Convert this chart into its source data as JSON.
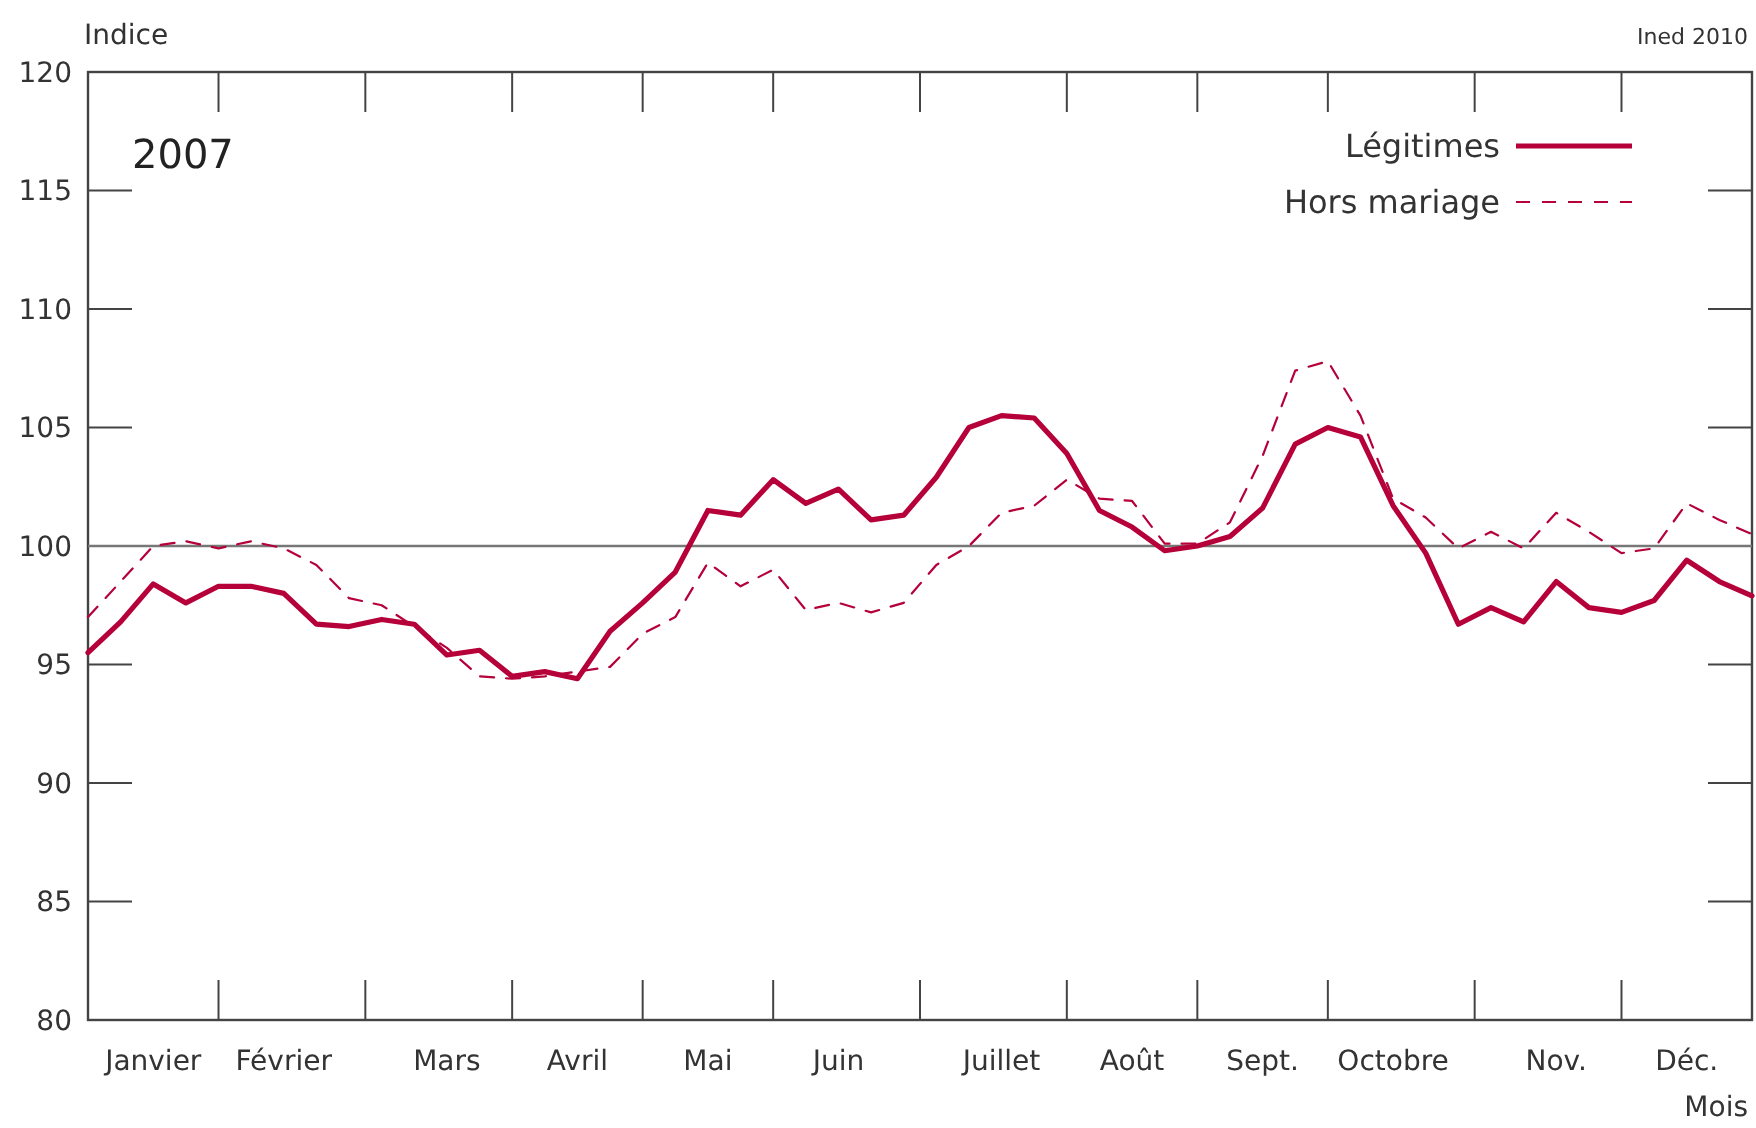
{
  "chart_data": {
    "type": "line",
    "title": "2007",
    "xlabel": "Mois",
    "ylabel": "Indice",
    "annotations": [
      "Ined 2010"
    ],
    "categories": [
      null,
      null,
      "Janvier",
      null,
      null,
      null,
      "Février",
      null,
      null,
      null,
      null,
      "Mars",
      null,
      null,
      null,
      "Avril",
      null,
      null,
      null,
      "Mai",
      null,
      null,
      null,
      "Juin",
      null,
      null,
      null,
      null,
      "Juillet",
      null,
      null,
      null,
      "Août",
      null,
      null,
      null,
      "Sept.",
      null,
      null,
      null,
      "Octobre",
      null,
      null,
      null,
      null,
      "Nov.",
      null,
      null,
      null,
      "Déc.",
      null,
      null
    ],
    "series": [
      {
        "name": "Légitimes",
        "color": "#b5003a",
        "line_style": "solid",
        "values": [
          95.5,
          96.8,
          98.4,
          97.6,
          98.3,
          98.3,
          98.0,
          96.7,
          96.6,
          96.9,
          96.7,
          95.4,
          95.6,
          94.5,
          94.7,
          94.4,
          96.4,
          97.6,
          98.9,
          101.5,
          101.3,
          102.8,
          101.8,
          102.4,
          101.1,
          101.3,
          102.9,
          105.0,
          105.5,
          105.4,
          103.9,
          101.5,
          100.8,
          99.8,
          100.0,
          100.4,
          101.6,
          104.3,
          105.0,
          104.6,
          101.7,
          99.7,
          96.7,
          97.4,
          96.8,
          98.5,
          97.4,
          97.2,
          97.7,
          99.4,
          98.5,
          97.9
        ]
      },
      {
        "name": "Hors mariage",
        "color": "#b5003a",
        "line_style": "dashed",
        "values": [
          97.0,
          98.5,
          100.0,
          100.2,
          99.9,
          100.2,
          99.9,
          99.2,
          97.8,
          97.5,
          96.6,
          95.7,
          94.5,
          94.4,
          94.5,
          94.7,
          94.9,
          96.3,
          97.0,
          99.3,
          98.3,
          99.0,
          97.3,
          97.6,
          97.2,
          97.6,
          99.2,
          100.0,
          101.4,
          101.7,
          102.8,
          102.0,
          101.9,
          100.1,
          100.1,
          101.0,
          103.8,
          107.4,
          107.8,
          105.5,
          102.0,
          101.2,
          99.9,
          100.6,
          99.9,
          101.4,
          100.6,
          99.7,
          99.9,
          101.8,
          101.1,
          100.5
        ]
      }
    ],
    "ylim": [
      80,
      120
    ],
    "yticks": [
      80,
      85,
      90,
      95,
      100,
      105,
      110,
      115,
      120
    ],
    "ref_lines": [
      {
        "axis": "y",
        "value": 100,
        "color": "#777777"
      }
    ],
    "legend": "top right",
    "marker": "none"
  }
}
